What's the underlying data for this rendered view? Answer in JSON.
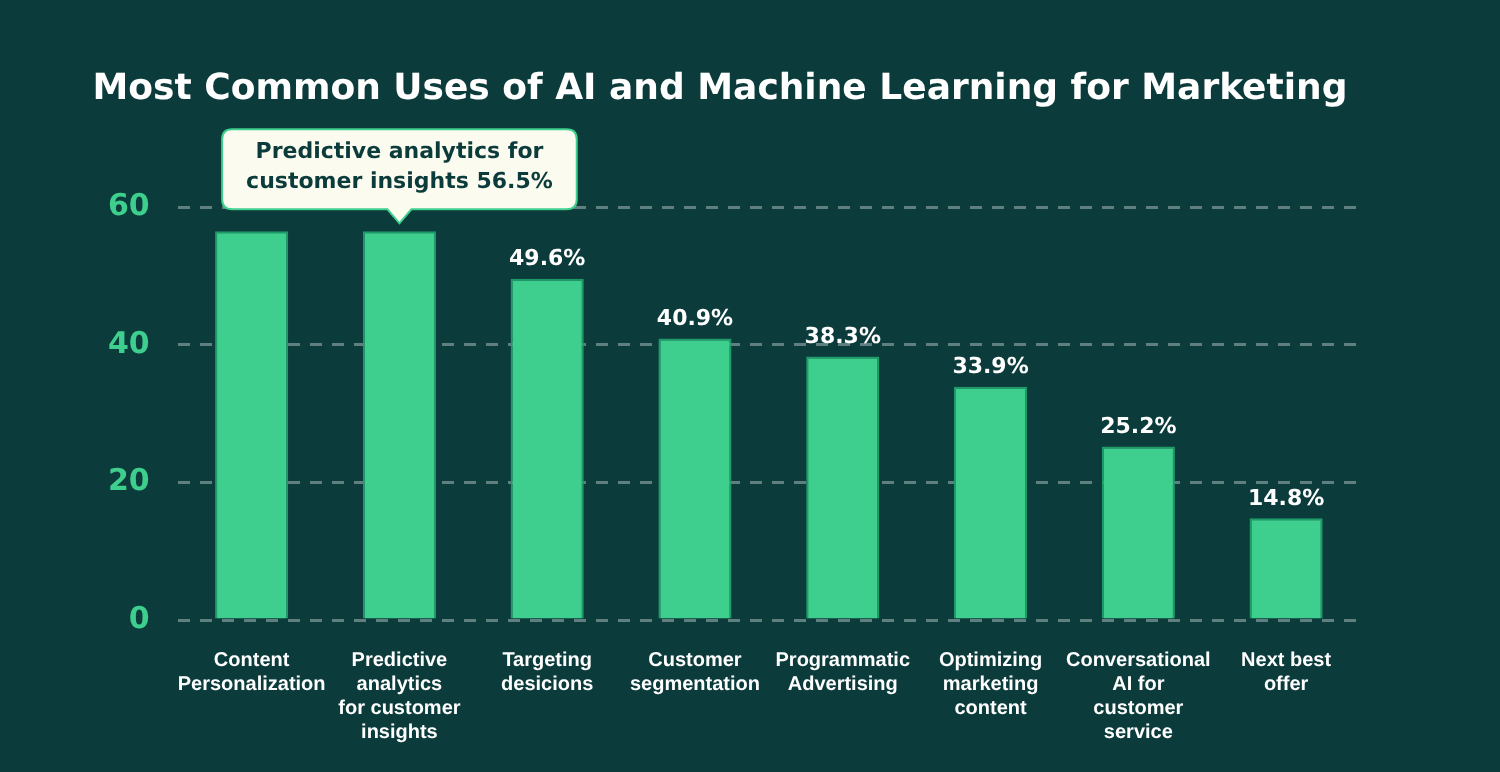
{
  "chart_data": {
    "type": "bar",
    "title": "Most Common Uses of AI and Machine Learning for Marketing",
    "categories": [
      "Content Personalization",
      "Predictive analytics for customer insights",
      "Targeting desicions",
      "Customer segmentation",
      "Programmatic Advertising",
      "Optimizing marketing content",
      "Conversational AI for customer service",
      "Next best offer"
    ],
    "values": [
      56.5,
      56.5,
      49.6,
      40.9,
      38.3,
      33.9,
      25.2,
      14.8
    ],
    "value_labels": [
      null,
      null,
      "49.6%",
      "40.9%",
      "38.3%",
      "33.9%",
      "25.2%",
      "14.8%"
    ],
    "color": "#3ecf8e",
    "annotations": [
      {
        "text": "Predictive analytics for customer insights 56.5%",
        "x": "Predictive analytics for customer insights",
        "y": 56.5
      }
    ],
    "ylim": [
      0,
      60
    ],
    "yticks": [
      0,
      20,
      40,
      60
    ],
    "grid": "y",
    "legend": false
  }
}
